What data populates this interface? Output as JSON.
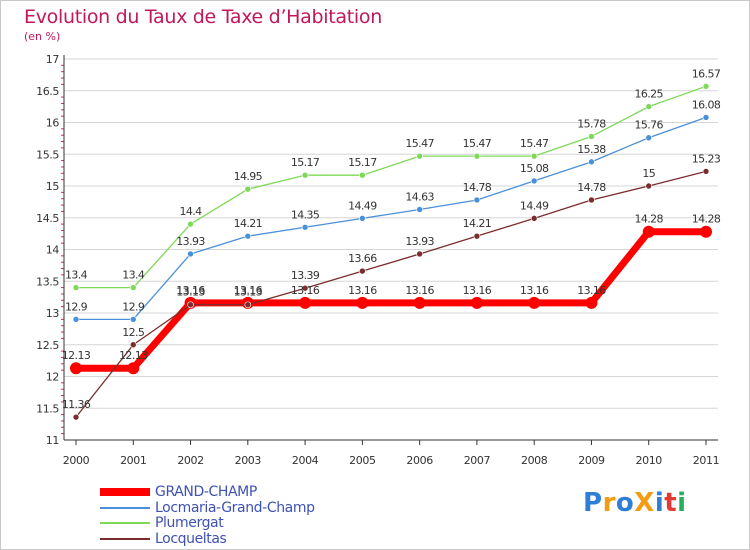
{
  "header": {
    "title": "Evolution du Taux de Taxe d’Habitation",
    "unit": "(en %)"
  },
  "logo": {
    "text": "ProXiti",
    "colors": [
      "#2e7dd6",
      "#f39c12",
      "#2e7dd6",
      "#f39c12",
      "#2e7dd6",
      "#e53935",
      "#27ae60"
    ]
  },
  "chart_data": {
    "type": "line",
    "title": "Evolution du Taux de Taxe d’Habitation",
    "ylabel": "(en %)",
    "xlabel": "",
    "x": [
      "2000",
      "2001",
      "2002",
      "2003",
      "2004",
      "2005",
      "2006",
      "2007",
      "2008",
      "2009",
      "2010",
      "2011"
    ],
    "ylim": [
      11,
      17
    ],
    "yticks": [
      "11",
      "11.5",
      "12",
      "12.5",
      "13",
      "13.5",
      "14",
      "14.5",
      "15",
      "15.5",
      "16",
      "16.5",
      "17"
    ],
    "grid": "horizontal",
    "legend_position": "bottom",
    "series": [
      {
        "name": "GRAND-CHAMP",
        "color": "#ff0000",
        "values": [
          12.13,
          12.13,
          13.16,
          13.16,
          13.16,
          13.16,
          13.16,
          13.16,
          13.16,
          13.16,
          14.28,
          14.28
        ],
        "labels": [
          "12.13",
          "12.13",
          "13.16",
          "13.16",
          "13.16",
          "13.16",
          "13.16",
          "13.16",
          "13.16",
          "13.16",
          "14.28",
          "14.28"
        ]
      },
      {
        "name": "Locmaria-Grand-Champ",
        "color": "#4a90d9",
        "values": [
          12.9,
          12.9,
          13.93,
          14.21,
          14.35,
          14.49,
          14.63,
          14.78,
          15.08,
          15.38,
          15.76,
          16.08
        ],
        "labels": [
          "12.9",
          "12.9",
          "13.93",
          "14.21",
          "14.35",
          "14.49",
          "14.63",
          "14.78",
          "15.08",
          "15.38",
          "15.76",
          "16.08"
        ]
      },
      {
        "name": "Plumergat",
        "color": "#7ed957",
        "values": [
          13.4,
          13.4,
          14.4,
          14.95,
          15.17,
          15.17,
          15.47,
          15.47,
          15.47,
          15.78,
          16.25,
          16.57
        ],
        "labels": [
          "13.4",
          "13.4",
          "14.4",
          "14.95",
          "15.17",
          "15.17",
          "15.47",
          "15.47",
          "15.47",
          "15.78",
          "16.25",
          "16.57"
        ]
      },
      {
        "name": "Locqueltas",
        "color": "#7b2d2d",
        "values": [
          11.36,
          12.5,
          13.13,
          13.13,
          13.39,
          13.66,
          13.93,
          14.21,
          14.49,
          14.78,
          15,
          15.23
        ],
        "labels": [
          "11.36",
          "12.5",
          "13.13",
          "13.13",
          "13.39",
          "13.66",
          "13.93",
          "14.21",
          "14.49",
          "14.78",
          "15",
          "15.23"
        ]
      }
    ]
  }
}
